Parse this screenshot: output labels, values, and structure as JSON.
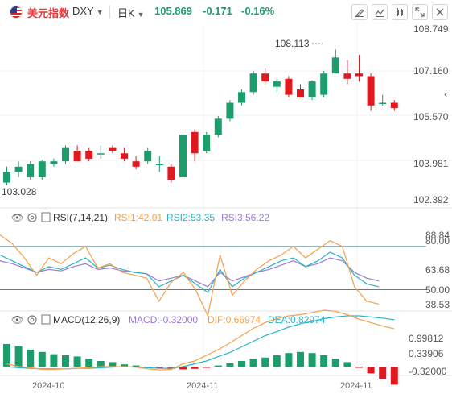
{
  "header": {
    "name": "美元指数",
    "symbol": "DXY",
    "period": "日K",
    "price": "105.869",
    "change": "-0.171",
    "change_pct": "-0.16%"
  },
  "colors": {
    "up": "#1b9e6b",
    "down": "#e0191f",
    "rsi1": "#f5a04a",
    "rsi2": "#2ab3c5",
    "rsi3": "#9b7ad9",
    "dif": "#f5a04a",
    "dea": "#2ab3c5"
  },
  "price_axis": {
    "ticks": [
      "108.749",
      "107.160",
      "105.570",
      "103.981",
      "102.392"
    ],
    "ylim": [
      102.392,
      108.749
    ]
  },
  "price_annotations": {
    "high": "108.113",
    "low": "103.028"
  },
  "rsi": {
    "title": "RSI(7,14,21)",
    "rsi1": "RSI1:42.01",
    "rsi2": "RSI2:53.35",
    "rsi3": "RSI3:56.22",
    "ticks": [
      "88.84",
      "80.00",
      "63.68",
      "50.00",
      "38.53"
    ]
  },
  "macd": {
    "title": "MACD(12,26,9)",
    "macd": "MACD:-0.32000",
    "dif": "DIF:0.66974",
    "dea": "DEA:0.82974",
    "ticks": [
      "0.99812",
      "0.33906",
      "-0.32000"
    ]
  },
  "x_axis": {
    "labels": [
      "2024-10",
      "2024-11",
      "2024-11"
    ]
  },
  "chart_data": {
    "type": "candlestick",
    "candles": [
      {
        "o": 103.1,
        "h": 103.7,
        "l": 103.0,
        "c": 103.5
      },
      {
        "o": 103.5,
        "h": 103.9,
        "l": 103.3,
        "c": 103.7
      },
      {
        "o": 103.3,
        "h": 103.9,
        "l": 103.2,
        "c": 103.8
      },
      {
        "o": 103.3,
        "h": 103.95,
        "l": 103.2,
        "c": 103.9
      },
      {
        "o": 103.8,
        "h": 104.0,
        "l": 103.7,
        "c": 103.9
      },
      {
        "o": 103.9,
        "h": 104.5,
        "l": 103.8,
        "c": 104.4
      },
      {
        "o": 104.3,
        "h": 104.5,
        "l": 103.9,
        "c": 103.9
      },
      {
        "o": 104.3,
        "h": 104.4,
        "l": 103.9,
        "c": 104.0
      },
      {
        "o": 104.2,
        "h": 104.5,
        "l": 104.0,
        "c": 104.2
      },
      {
        "o": 104.4,
        "h": 104.5,
        "l": 104.2,
        "c": 104.3
      },
      {
        "o": 104.2,
        "h": 104.4,
        "l": 103.9,
        "c": 104.0
      },
      {
        "o": 103.9,
        "h": 104.1,
        "l": 103.6,
        "c": 103.7
      },
      {
        "o": 103.9,
        "h": 104.4,
        "l": 103.8,
        "c": 104.3
      },
      {
        "o": 103.8,
        "h": 104.1,
        "l": 103.5,
        "c": 103.8
      },
      {
        "o": 103.7,
        "h": 103.8,
        "l": 103.1,
        "c": 103.2
      },
      {
        "o": 103.3,
        "h": 105.0,
        "l": 103.2,
        "c": 104.9
      },
      {
        "o": 105.0,
        "h": 105.1,
        "l": 103.9,
        "c": 104.2
      },
      {
        "o": 104.3,
        "h": 105.0,
        "l": 104.2,
        "c": 104.9
      },
      {
        "o": 104.9,
        "h": 105.6,
        "l": 104.8,
        "c": 105.5
      },
      {
        "o": 105.5,
        "h": 106.2,
        "l": 105.4,
        "c": 106.1
      },
      {
        "o": 106.1,
        "h": 106.6,
        "l": 106.0,
        "c": 106.5
      },
      {
        "o": 106.5,
        "h": 107.3,
        "l": 106.4,
        "c": 107.2
      },
      {
        "o": 107.2,
        "h": 107.4,
        "l": 106.8,
        "c": 106.9
      },
      {
        "o": 106.7,
        "h": 107.0,
        "l": 106.5,
        "c": 106.9
      },
      {
        "o": 107.0,
        "h": 107.1,
        "l": 106.3,
        "c": 106.4
      },
      {
        "o": 106.6,
        "h": 106.8,
        "l": 106.3,
        "c": 106.3
      },
      {
        "o": 106.3,
        "h": 106.95,
        "l": 106.2,
        "c": 106.9
      },
      {
        "o": 106.4,
        "h": 107.3,
        "l": 106.3,
        "c": 107.2
      },
      {
        "o": 107.2,
        "h": 108.1,
        "l": 107.2,
        "c": 107.8
      },
      {
        "o": 107.2,
        "h": 107.7,
        "l": 106.8,
        "c": 107.0
      },
      {
        "o": 107.2,
        "h": 107.9,
        "l": 106.9,
        "c": 107.1
      },
      {
        "o": 107.1,
        "h": 107.2,
        "l": 105.8,
        "c": 106.0
      },
      {
        "o": 106.1,
        "h": 106.4,
        "l": 106.0,
        "c": 106.1
      },
      {
        "o": 106.1,
        "h": 106.2,
        "l": 105.8,
        "c": 105.9
      }
    ],
    "rsi1": [
      88,
      82,
      72,
      60,
      72,
      68,
      75,
      80,
      65,
      68,
      62,
      60,
      58,
      42,
      55,
      62,
      50,
      32,
      74,
      46,
      56,
      64,
      70,
      74,
      80,
      72,
      78,
      84,
      80,
      52,
      42,
      40
    ],
    "rsi2": [
      74,
      70,
      66,
      62,
      66,
      64,
      68,
      72,
      65,
      67,
      64,
      62,
      61,
      52,
      56,
      60,
      54,
      48,
      64,
      52,
      58,
      62,
      66,
      70,
      72,
      66,
      70,
      76,
      72,
      60,
      54,
      52
    ],
    "rsi3": [
      70,
      68,
      65,
      62,
      64,
      63,
      66,
      68,
      64,
      65,
      63,
      62,
      61,
      56,
      58,
      60,
      56,
      52,
      62,
      56,
      59,
      62,
      64,
      67,
      70,
      66,
      68,
      72,
      70,
      62,
      58,
      56
    ],
    "macd_hist": [
      0.4,
      0.36,
      0.3,
      0.26,
      0.22,
      0.2,
      0.18,
      0.14,
      0.1,
      0.08,
      0.04,
      0.02,
      0.0,
      -0.02,
      -0.04,
      -0.05,
      -0.04,
      -0.02,
      0.02,
      0.06,
      0.1,
      0.14,
      0.16,
      0.2,
      0.24,
      0.26,
      0.24,
      0.2,
      0.14,
      0.08,
      -0.02,
      -0.12,
      -0.22,
      -0.32
    ],
    "dif": [
      0.05,
      0.0,
      -0.02,
      -0.05,
      -0.05,
      -0.04,
      -0.03,
      -0.02,
      0.0,
      0.0,
      0.0,
      -0.01,
      -0.04,
      -0.06,
      -0.05,
      0.05,
      0.1,
      0.2,
      0.3,
      0.42,
      0.55,
      0.68,
      0.78,
      0.85,
      0.9,
      0.92,
      0.96,
      1.0,
      0.98,
      0.92,
      0.84,
      0.78,
      0.72,
      0.67
    ],
    "dea": [
      0.0,
      -0.02,
      -0.03,
      -0.04,
      -0.04,
      -0.04,
      -0.03,
      -0.03,
      -0.02,
      -0.01,
      0.0,
      -0.01,
      -0.02,
      -0.03,
      -0.03,
      0.0,
      0.05,
      0.1,
      0.18,
      0.25,
      0.35,
      0.45,
      0.55,
      0.62,
      0.7,
      0.76,
      0.8,
      0.85,
      0.88,
      0.9,
      0.9,
      0.88,
      0.86,
      0.83
    ]
  }
}
